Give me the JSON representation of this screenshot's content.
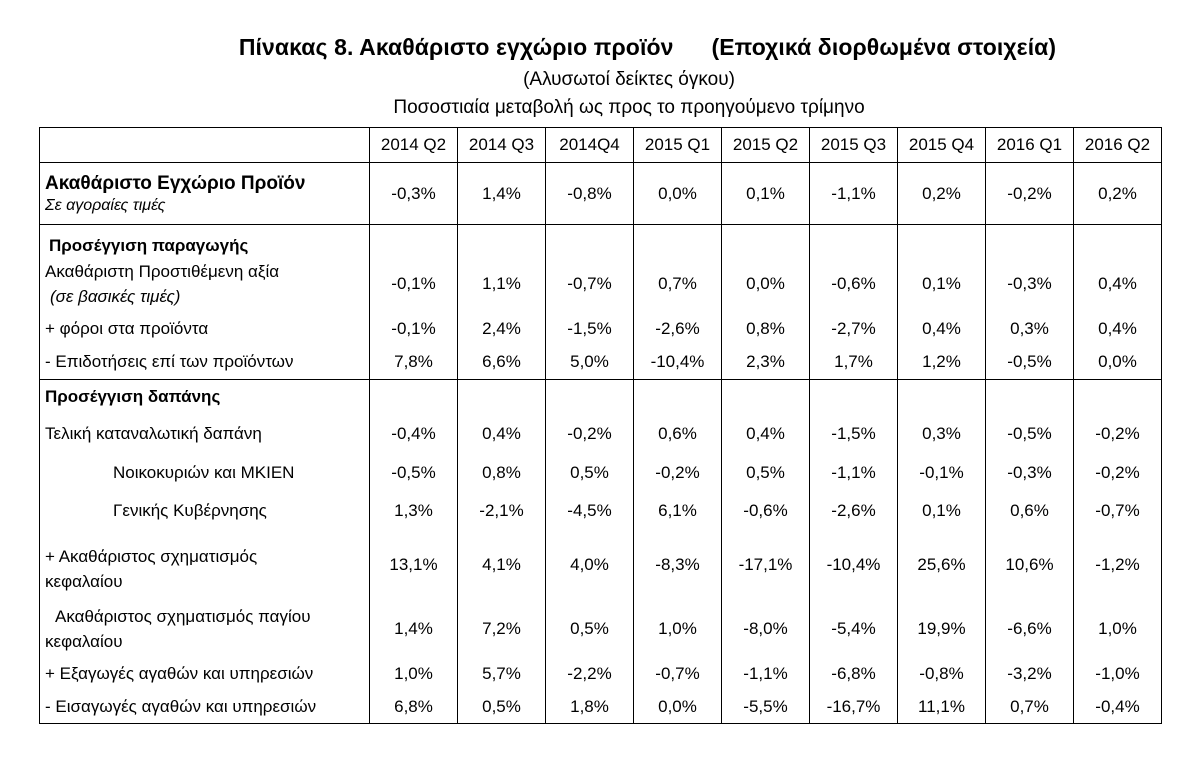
{
  "title_main": "Πίνακας 8. Ακαθάριστο εγχώριο προϊόν",
  "title_paren": "(Εποχικά διορθωμένα στοιχεία)",
  "subtitle1": "(Αλυσωτοί δείκτες όγκου)",
  "subtitle2": "Ποσοστιαία μεταβολή ως προς το προηγούμενο τρίμηνο",
  "columns": [
    "2014 Q2",
    "2014 Q3",
    "2014Q4",
    "2015 Q1",
    "2015 Q2",
    "2015 Q3",
    "2015 Q4",
    "2016 Q1",
    "2016 Q2"
  ],
  "rows": [
    {
      "label": "Ακαθάριστο Εγχώριο Προϊόν",
      "sublabel": "Σε αγοραίες τιμές",
      "values": [
        "-0,3%",
        "1,4%",
        "-0,8%",
        "0,0%",
        "0,1%",
        "-1,1%",
        "0,2%",
        "-0,2%",
        "0,2%"
      ]
    },
    {
      "section": "Προσέγγιση παραγωγής"
    },
    {
      "label": "Ακαθάριστη Προστιθέμενη αξία",
      "sublabel": "(σε βασικές τιμές)",
      "values": [
        "-0,1%",
        "1,1%",
        "-0,7%",
        "0,7%",
        "0,0%",
        "-0,6%",
        "0,1%",
        "-0,3%",
        "0,4%"
      ]
    },
    {
      "label": "+ φόροι στα προϊόντα",
      "values": [
        "-0,1%",
        "2,4%",
        "-1,5%",
        "-2,6%",
        "0,8%",
        "-2,7%",
        "0,4%",
        "0,3%",
        "0,4%"
      ]
    },
    {
      "label": "- Επιδοτήσεις επί των προϊόντων",
      "values": [
        "7,8%",
        "6,6%",
        "5,0%",
        "-10,4%",
        "2,3%",
        "1,7%",
        "1,2%",
        "-0,5%",
        "0,0%"
      ]
    },
    {
      "section": "Προσέγγιση δαπάνης"
    },
    {
      "label": "Τελική καταναλωτική δαπάνη",
      "values": [
        "-0,4%",
        "0,4%",
        "-0,2%",
        "0,6%",
        "0,4%",
        "-1,5%",
        "0,3%",
        "-0,5%",
        "-0,2%"
      ]
    },
    {
      "label": "Νοικοκυριών και ΜΚΙΕΝ",
      "values": [
        "-0,5%",
        "0,8%",
        "0,5%",
        "-0,2%",
        "0,5%",
        "-1,1%",
        "-0,1%",
        "-0,3%",
        "-0,2%"
      ]
    },
    {
      "label": "Γενικής Κυβέρνησης",
      "values": [
        "1,3%",
        "-2,1%",
        "-4,5%",
        "6,1%",
        "-0,6%",
        "-2,6%",
        "0,1%",
        "0,6%",
        "-0,7%"
      ]
    },
    {
      "label": "+ Ακαθάριστος σχηματισμός κεφαλαίου",
      "values": [
        "13,1%",
        "4,1%",
        "4,0%",
        "-8,3%",
        "-17,1%",
        "-10,4%",
        "25,6%",
        "10,6%",
        "-1,2%"
      ]
    },
    {
      "label": "Ακαθάριστος σχηματισμός παγίου κεφαλαίου",
      "values": [
        "1,4%",
        "7,2%",
        "0,5%",
        "1,0%",
        "-8,0%",
        "-5,4%",
        "19,9%",
        "-6,6%",
        "1,0%"
      ]
    },
    {
      "label": "+ Εξαγωγές αγαθών και υπηρεσιών",
      "values": [
        "1,0%",
        "5,7%",
        "-2,2%",
        "-0,7%",
        "-1,1%",
        "-6,8%",
        "-0,8%",
        "-3,2%",
        "-1,0%"
      ]
    },
    {
      "label": "- Εισαγωγές αγαθών και υπηρεσιών",
      "values": [
        "6,8%",
        "0,5%",
        "1,8%",
        "0,0%",
        "-5,5%",
        "-16,7%",
        "11,1%",
        "0,7%",
        "-0,4%"
      ]
    }
  ]
}
